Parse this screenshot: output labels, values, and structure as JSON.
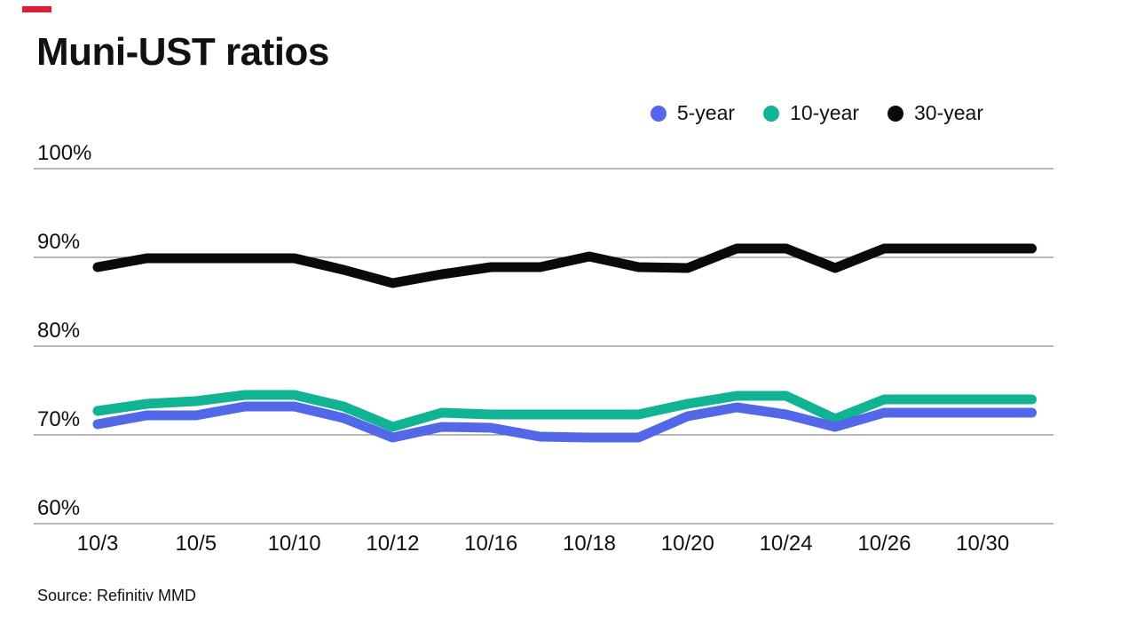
{
  "page": {
    "title": "Muni-UST ratios",
    "source": "Source: Refinitiv MMD",
    "accent_color": "#e11d33",
    "background_color": "#ffffff",
    "gridline_color": "#8c8c8c"
  },
  "legend": [
    {
      "label": "5-year",
      "color": "#5268e8"
    },
    {
      "label": "10-year",
      "color": "#10b392"
    },
    {
      "label": "30-year",
      "color": "#0a0a0a"
    }
  ],
  "chart_data": {
    "type": "line",
    "title": "Muni-UST ratios",
    "xlabel": "",
    "ylabel": "",
    "ylim": [
      60,
      100
    ],
    "yticks": [
      {
        "value": 100,
        "label": "100%"
      },
      {
        "value": 90,
        "label": "90%"
      },
      {
        "value": 80,
        "label": "80%"
      },
      {
        "value": 70,
        "label": "70%"
      },
      {
        "value": 60,
        "label": "60%"
      }
    ],
    "grid": "horizontal",
    "legend_position": "top-right",
    "x": [
      "10/3",
      "10/4",
      "10/5",
      "10/6",
      "10/10",
      "10/11",
      "10/12",
      "10/13",
      "10/16",
      "10/17",
      "10/18",
      "10/19",
      "10/20",
      "10/23",
      "10/24",
      "10/25",
      "10/26",
      "10/27",
      "10/30",
      "10/31"
    ],
    "x_tick_labels": [
      "10/3",
      "10/5",
      "10/10",
      "10/12",
      "10/16",
      "10/18",
      "10/20",
      "10/24",
      "10/26",
      "10/30"
    ],
    "x_tick_every": 2,
    "series": [
      {
        "name": "5-year",
        "color": "#5268e8",
        "values": [
          71.2,
          72.2,
          72.2,
          73.2,
          73.2,
          71.9,
          69.7,
          70.9,
          70.8,
          69.8,
          69.7,
          69.7,
          72.1,
          73.1,
          72.3,
          70.9,
          72.5,
          72.5,
          72.5,
          72.5
        ]
      },
      {
        "name": "10-year",
        "color": "#10b392",
        "values": [
          72.7,
          73.5,
          73.8,
          74.5,
          74.5,
          73.2,
          70.9,
          72.5,
          72.3,
          72.3,
          72.3,
          72.3,
          73.5,
          74.4,
          74.4,
          71.8,
          74.0,
          74.0,
          74.0,
          74.0
        ]
      },
      {
        "name": "30-year",
        "color": "#0a0a0a",
        "values": [
          88.9,
          89.9,
          89.9,
          89.9,
          89.9,
          88.6,
          87.1,
          88.1,
          88.9,
          88.9,
          90.1,
          88.9,
          88.8,
          91.0,
          91.0,
          88.8,
          91.0,
          91.0,
          91.0,
          91.0
        ]
      }
    ]
  }
}
